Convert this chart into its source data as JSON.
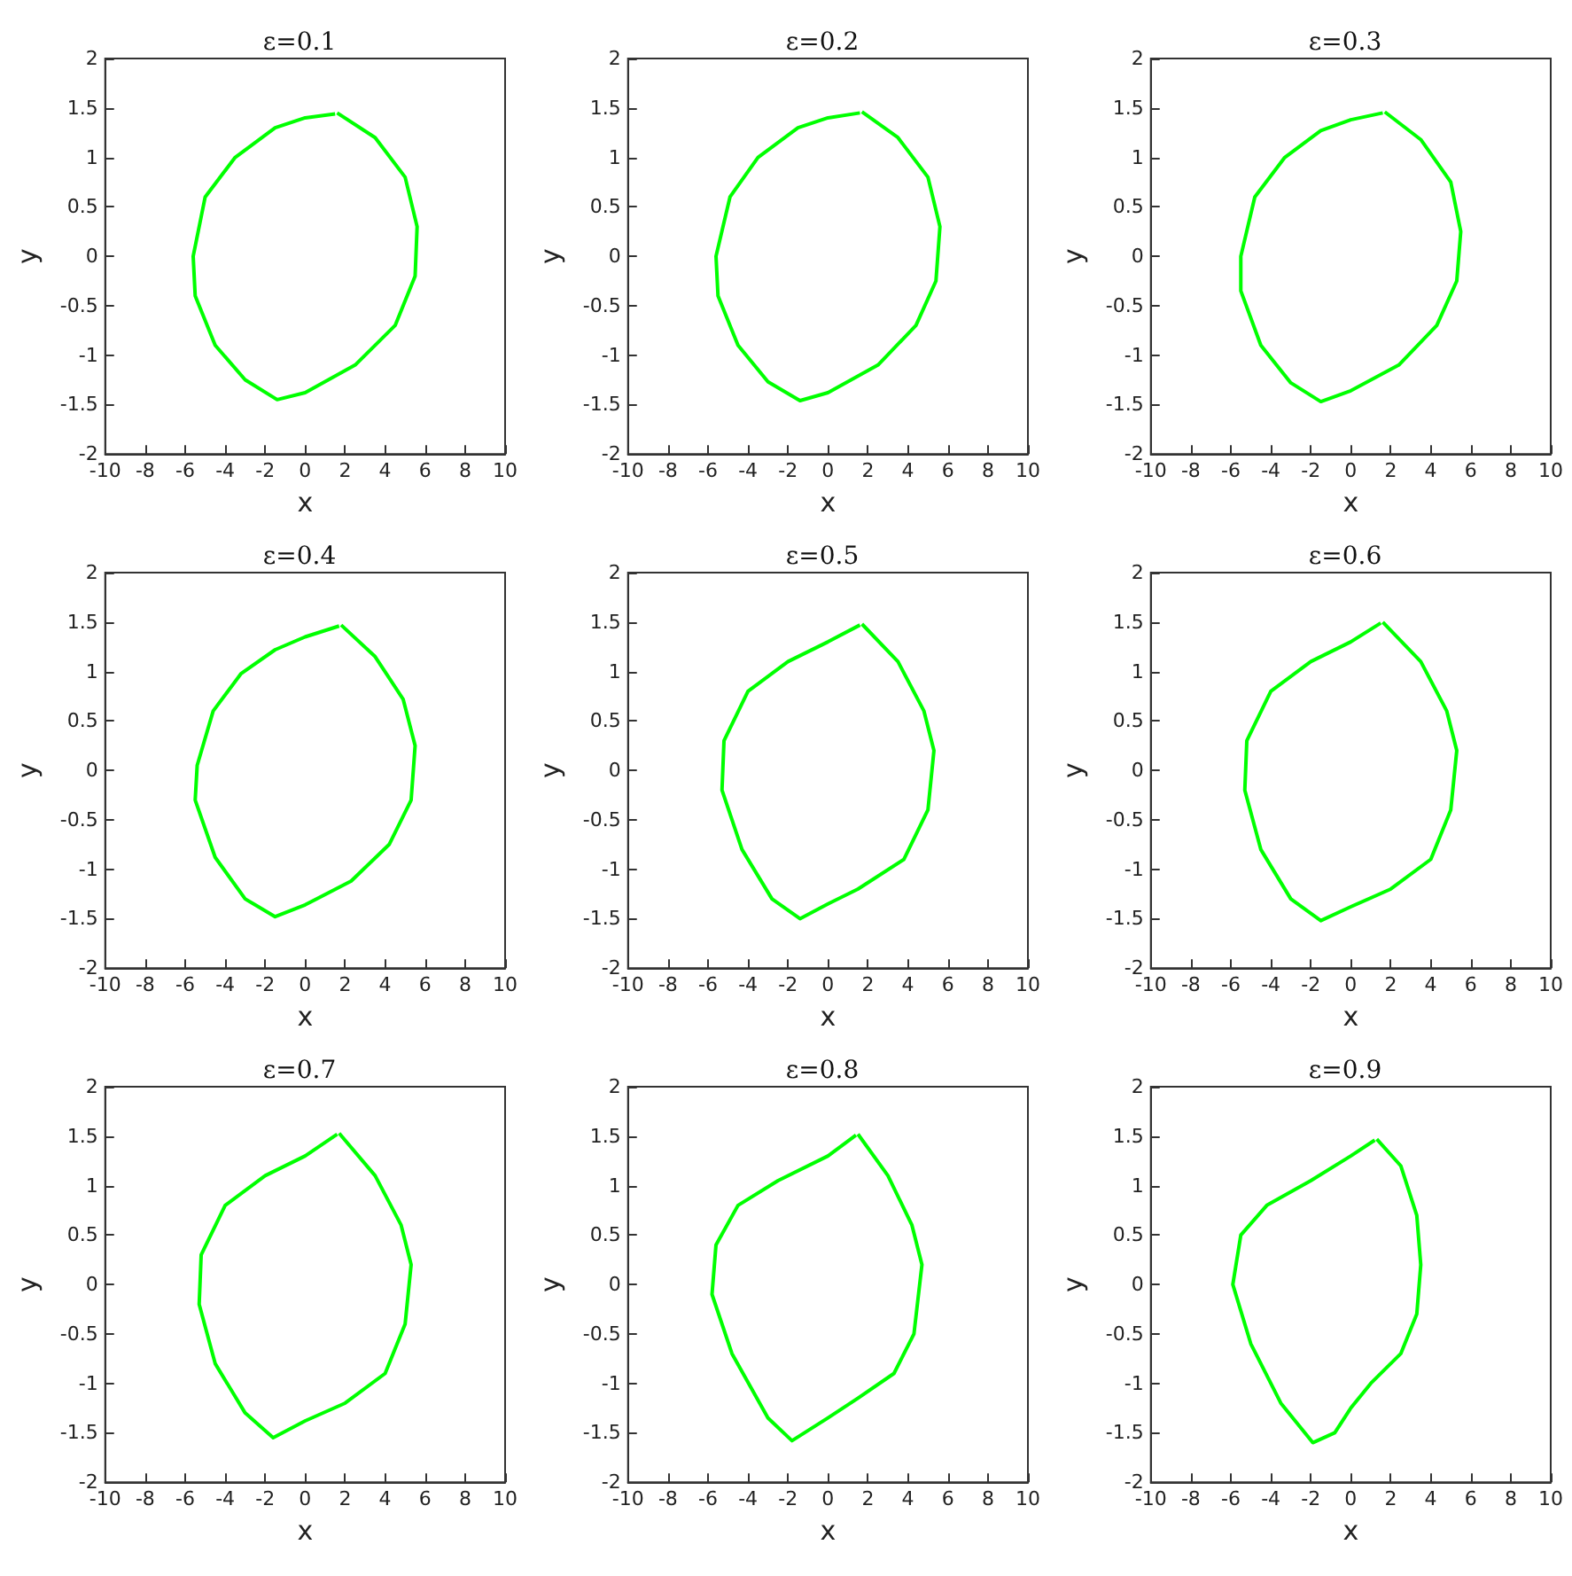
{
  "chart_data": [
    {
      "type": "line",
      "title": "ε=0.1",
      "xlabel": "x",
      "ylabel": "y",
      "xlim": [
        -10,
        10
      ],
      "ylim": [
        -2,
        2
      ],
      "xticks": [
        -10,
        -8,
        -6,
        -4,
        -2,
        0,
        2,
        4,
        6,
        8,
        10
      ],
      "yticks": [
        -2,
        -1.5,
        -1,
        -0.5,
        0,
        0.5,
        1,
        1.5,
        2
      ],
      "marker": "none",
      "grid": false,
      "series": [
        {
          "color": "#00ff00",
          "x": [
            1.6,
            3.5,
            5,
            5.6,
            5.5,
            4.5,
            2.5,
            0,
            -1.4,
            -3,
            -4.5,
            -5.5,
            -5.6,
            -5,
            -3.5,
            -1.5,
            0,
            1.5
          ],
          "values": [
            1.45,
            1.2,
            0.8,
            0.3,
            -0.2,
            -0.7,
            -1.1,
            -1.38,
            -1.45,
            -1.25,
            -0.9,
            -0.4,
            0,
            0.6,
            1,
            1.3,
            1.4,
            1.44
          ]
        }
      ]
    },
    {
      "type": "line",
      "title": "ε=0.2",
      "xlabel": "x",
      "ylabel": "y",
      "xlim": [
        -10,
        10
      ],
      "ylim": [
        -2,
        2
      ],
      "xticks": [
        -10,
        -8,
        -6,
        -4,
        -2,
        0,
        2,
        4,
        6,
        8,
        10
      ],
      "yticks": [
        -2,
        -1.5,
        -1,
        -0.5,
        0,
        0.5,
        1,
        1.5,
        2
      ],
      "marker": "none",
      "grid": false,
      "series": [
        {
          "color": "#00ff00",
          "x": [
            1.7,
            3.5,
            5,
            5.6,
            5.4,
            4.4,
            2.5,
            0,
            -1.4,
            -3,
            -4.5,
            -5.5,
            -5.6,
            -4.9,
            -3.5,
            -1.5,
            0,
            1.6
          ],
          "values": [
            1.46,
            1.2,
            0.8,
            0.3,
            -0.25,
            -0.7,
            -1.1,
            -1.38,
            -1.46,
            -1.27,
            -0.9,
            -0.4,
            0,
            0.6,
            1,
            1.3,
            1.4,
            1.45
          ]
        }
      ]
    },
    {
      "type": "line",
      "title": "ε=0.3",
      "xlabel": "x",
      "ylabel": "y",
      "xlim": [
        -10,
        10
      ],
      "ylim": [
        -2,
        2
      ],
      "xticks": [
        -10,
        -8,
        -6,
        -4,
        -2,
        0,
        2,
        4,
        6,
        8,
        10
      ],
      "yticks": [
        -2,
        -1.5,
        -1,
        -0.5,
        0,
        0.5,
        1,
        1.5,
        2
      ],
      "marker": "none",
      "grid": false,
      "series": [
        {
          "color": "#00ff00",
          "x": [
            1.7,
            3.5,
            5,
            5.5,
            5.3,
            4.3,
            2.4,
            0,
            -1.5,
            -3,
            -4.5,
            -5.5,
            -5.5,
            -4.8,
            -3.3,
            -1.5,
            0,
            1.6
          ],
          "values": [
            1.46,
            1.18,
            0.75,
            0.25,
            -0.25,
            -0.7,
            -1.1,
            -1.36,
            -1.47,
            -1.28,
            -0.9,
            -0.35,
            0,
            0.6,
            1,
            1.27,
            1.38,
            1.45
          ]
        }
      ]
    },
    {
      "type": "line",
      "title": "ε=0.4",
      "xlabel": "x",
      "ylabel": "y",
      "xlim": [
        -10,
        10
      ],
      "ylim": [
        -2,
        2
      ],
      "xticks": [
        -10,
        -8,
        -6,
        -4,
        -2,
        0,
        2,
        4,
        6,
        8,
        10
      ],
      "yticks": [
        -2,
        -1.5,
        -1,
        -0.5,
        0,
        0.5,
        1,
        1.5,
        2
      ],
      "marker": "none",
      "grid": false,
      "series": [
        {
          "color": "#00ff00",
          "x": [
            1.8,
            3.5,
            4.9,
            5.5,
            5.3,
            4.2,
            2.3,
            0,
            -1.5,
            -3,
            -4.5,
            -5.5,
            -5.4,
            -4.6,
            -3.2,
            -1.5,
            0,
            1.7
          ],
          "values": [
            1.47,
            1.15,
            0.72,
            0.25,
            -0.3,
            -0.75,
            -1.12,
            -1.36,
            -1.48,
            -1.3,
            -0.88,
            -0.3,
            0.05,
            0.6,
            0.98,
            1.22,
            1.35,
            1.46
          ]
        }
      ]
    },
    {
      "type": "line",
      "title": "ε=0.5",
      "xlabel": "x",
      "ylabel": "y",
      "xlim": [
        -10,
        10
      ],
      "ylim": [
        -2,
        2
      ],
      "xticks": [
        -10,
        -8,
        -6,
        -4,
        -2,
        0,
        2,
        4,
        6,
        8,
        10
      ],
      "yticks": [
        -2,
        -1.5,
        -1,
        -0.5,
        0,
        0.5,
        1,
        1.5,
        2
      ],
      "marker": "none",
      "grid": false,
      "series": [
        {
          "color": "#00ff00",
          "x": [
            1.7,
            3.5,
            4.8,
            5.3,
            5,
            3.8,
            1.5,
            0,
            -1.4,
            -2.8,
            -4.3,
            -5.3,
            -5.2,
            -4,
            -2,
            0,
            1.6
          ],
          "values": [
            1.48,
            1.1,
            0.6,
            0.2,
            -0.4,
            -0.9,
            -1.2,
            -1.35,
            -1.5,
            -1.3,
            -0.8,
            -0.2,
            0.3,
            0.8,
            1.1,
            1.3,
            1.47
          ]
        }
      ]
    },
    {
      "type": "line",
      "title": "ε=0.6",
      "xlabel": "x",
      "ylabel": "y",
      "xlim": [
        -10,
        10
      ],
      "ylim": [
        -2,
        2
      ],
      "xticks": [
        -10,
        -8,
        -6,
        -4,
        -2,
        0,
        2,
        4,
        6,
        8,
        10
      ],
      "yticks": [
        -2,
        -1.5,
        -1,
        -0.5,
        0,
        0.5,
        1,
        1.5,
        2
      ],
      "marker": "none",
      "grid": false,
      "series": [
        {
          "color": "#00ff00",
          "x": [
            1.6,
            3.5,
            4.8,
            5.3,
            5,
            4,
            2,
            0,
            -1.5,
            -3,
            -4.5,
            -5.3,
            -5.2,
            -4,
            -2,
            0,
            1.5
          ],
          "values": [
            1.5,
            1.1,
            0.6,
            0.2,
            -0.4,
            -0.9,
            -1.2,
            -1.38,
            -1.52,
            -1.3,
            -0.8,
            -0.2,
            0.3,
            0.8,
            1.1,
            1.3,
            1.49
          ]
        }
      ]
    },
    {
      "type": "line",
      "title": "ε=0.7",
      "xlabel": "x",
      "ylabel": "y",
      "xlim": [
        -10,
        10
      ],
      "ylim": [
        -2,
        2
      ],
      "xticks": [
        -10,
        -8,
        -6,
        -4,
        -2,
        0,
        2,
        4,
        6,
        8,
        10
      ],
      "yticks": [
        -2,
        -1.5,
        -1,
        -0.5,
        0,
        0.5,
        1,
        1.5,
        2
      ],
      "marker": "none",
      "grid": false,
      "series": [
        {
          "color": "#00ff00",
          "x": [
            1.7,
            3.5,
            4.8,
            5.3,
            5,
            4,
            2,
            0,
            -1.6,
            -3,
            -4.5,
            -5.3,
            -5.2,
            -4,
            -2,
            0,
            1.6
          ],
          "values": [
            1.53,
            1.1,
            0.6,
            0.2,
            -0.4,
            -0.9,
            -1.2,
            -1.38,
            -1.55,
            -1.3,
            -0.8,
            -0.2,
            0.3,
            0.8,
            1.1,
            1.3,
            1.52
          ]
        }
      ]
    },
    {
      "type": "line",
      "title": "ε=0.8",
      "xlabel": "x",
      "ylabel": "y",
      "xlim": [
        -10,
        10
      ],
      "ylim": [
        -2,
        2
      ],
      "xticks": [
        -10,
        -8,
        -6,
        -4,
        -2,
        0,
        2,
        4,
        6,
        8,
        10
      ],
      "yticks": [
        -2,
        -1.5,
        -1,
        -0.5,
        0,
        0.5,
        1,
        1.5,
        2
      ],
      "marker": "none",
      "grid": false,
      "series": [
        {
          "color": "#00ff00",
          "x": [
            1.5,
            3,
            4.2,
            4.7,
            4.3,
            3.3,
            1.5,
            0,
            -1.8,
            -3,
            -4.8,
            -5.8,
            -5.6,
            -4.5,
            -2.5,
            0,
            1.4
          ],
          "values": [
            1.52,
            1.1,
            0.6,
            0.2,
            -0.5,
            -0.9,
            -1.15,
            -1.35,
            -1.58,
            -1.35,
            -0.7,
            -0.1,
            0.4,
            0.8,
            1.05,
            1.3,
            1.51
          ]
        }
      ]
    },
    {
      "type": "line",
      "title": "ε=0.9",
      "xlabel": "x",
      "ylabel": "y",
      "xlim": [
        -10,
        10
      ],
      "ylim": [
        -2,
        2
      ],
      "xticks": [
        -10,
        -8,
        -6,
        -4,
        -2,
        0,
        2,
        4,
        6,
        8,
        10
      ],
      "yticks": [
        -2,
        -1.5,
        -1,
        -0.5,
        0,
        0.5,
        1,
        1.5,
        2
      ],
      "marker": "none",
      "grid": false,
      "series": [
        {
          "color": "#00ff00",
          "x": [
            1.3,
            2.5,
            3.3,
            3.5,
            3.3,
            2.5,
            1,
            0,
            -0.8,
            -1.9,
            -3.5,
            -5,
            -5.9,
            -5.5,
            -4.2,
            -2,
            0,
            1.2
          ],
          "values": [
            1.47,
            1.2,
            0.7,
            0.2,
            -0.3,
            -0.7,
            -1,
            -1.25,
            -1.5,
            -1.6,
            -1.2,
            -0.6,
            0,
            0.5,
            0.8,
            1.05,
            1.3,
            1.46
          ]
        }
      ]
    }
  ]
}
